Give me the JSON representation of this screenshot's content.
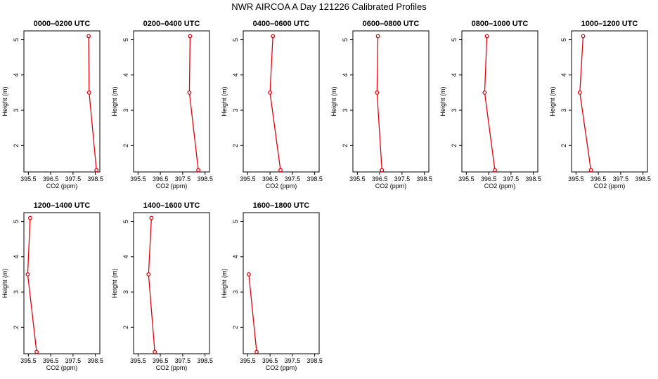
{
  "figure": {
    "title": "NWR AIRCOA A  Day 121226  Calibrated Profiles"
  },
  "style": {
    "line_color": "#e8000b",
    "axis_color": "#000000",
    "background": "#ffffff"
  },
  "chart_data": [
    {
      "type": "line",
      "title": "0000–0200 UTC",
      "xlabel": "CO2 (ppm)",
      "ylabel": "Height (m)",
      "xlim": [
        395.3,
        398.7
      ],
      "ylim": [
        1.25,
        5.25
      ],
      "xticks": [
        395.5,
        396.5,
        397.5,
        398.5
      ],
      "xtick_labels": [
        "395.5",
        "396.5",
        "397.5",
        "398.5"
      ],
      "yticks": [
        2,
        3,
        4,
        5
      ],
      "ytick_labels": [
        "2",
        "3",
        "4",
        "5"
      ],
      "points": [
        {
          "x": 398.2,
          "y": 5.1
        },
        {
          "x": 398.22,
          "y": 3.5
        },
        {
          "x": 398.55,
          "y": 1.3
        }
      ]
    },
    {
      "type": "line",
      "title": "0200–0400 UTC",
      "xlabel": "CO2 (ppm)",
      "ylabel": "Height (m)",
      "xlim": [
        395.3,
        398.7
      ],
      "ylim": [
        1.25,
        5.25
      ],
      "xticks": [
        395.5,
        396.5,
        397.5,
        398.5
      ],
      "xtick_labels": [
        "395.5",
        "396.5",
        "397.5",
        "398.5"
      ],
      "yticks": [
        2,
        3,
        4,
        5
      ],
      "ytick_labels": [
        "2",
        "3",
        "4",
        "5"
      ],
      "points": [
        {
          "x": 397.83,
          "y": 5.1
        },
        {
          "x": 397.8,
          "y": 3.5
        },
        {
          "x": 398.2,
          "y": 1.3
        }
      ]
    },
    {
      "type": "line",
      "title": "0400–0600 UTC",
      "xlabel": "CO2 (ppm)",
      "ylabel": "Height (m)",
      "xlim": [
        395.3,
        398.7
      ],
      "ylim": [
        1.25,
        5.25
      ],
      "xticks": [
        395.5,
        396.5,
        397.5,
        398.5
      ],
      "xtick_labels": [
        "395.5",
        "396.5",
        "397.5",
        "398.5"
      ],
      "yticks": [
        2,
        3,
        4,
        5
      ],
      "ytick_labels": [
        "2",
        "3",
        "4",
        "5"
      ],
      "points": [
        {
          "x": 396.63,
          "y": 5.1
        },
        {
          "x": 396.5,
          "y": 3.5
        },
        {
          "x": 396.97,
          "y": 1.3
        }
      ]
    },
    {
      "type": "line",
      "title": "0600–0800 UTC",
      "xlabel": "CO2 (ppm)",
      "ylabel": "Height (m)",
      "xlim": [
        395.3,
        398.7
      ],
      "ylim": [
        1.25,
        5.25
      ],
      "xticks": [
        395.5,
        396.5,
        397.5,
        398.5
      ],
      "xtick_labels": [
        "395.5",
        "396.5",
        "397.5",
        "398.5"
      ],
      "yticks": [
        2,
        3,
        4,
        5
      ],
      "ytick_labels": [
        "2",
        "3",
        "4",
        "5"
      ],
      "points": [
        {
          "x": 396.42,
          "y": 5.1
        },
        {
          "x": 396.38,
          "y": 3.5
        },
        {
          "x": 396.6,
          "y": 1.3
        }
      ]
    },
    {
      "type": "line",
      "title": "0800–1000 UTC",
      "xlabel": "CO2 (ppm)",
      "ylabel": "Height (m)",
      "xlim": [
        395.3,
        398.7
      ],
      "ylim": [
        1.25,
        5.25
      ],
      "xticks": [
        395.5,
        396.5,
        397.5,
        398.5
      ],
      "xtick_labels": [
        "395.5",
        "396.5",
        "397.5",
        "398.5"
      ],
      "yticks": [
        2,
        3,
        4,
        5
      ],
      "ytick_labels": [
        "2",
        "3",
        "4",
        "5"
      ],
      "points": [
        {
          "x": 396.42,
          "y": 5.1
        },
        {
          "x": 396.32,
          "y": 3.5
        },
        {
          "x": 396.78,
          "y": 1.3
        }
      ]
    },
    {
      "type": "line",
      "title": "1000–1200 UTC",
      "xlabel": "CO2 (ppm)",
      "ylabel": "Height (m)",
      "xlim": [
        395.3,
        398.7
      ],
      "ylim": [
        1.25,
        5.25
      ],
      "xticks": [
        395.5,
        396.5,
        397.5,
        398.5
      ],
      "xtick_labels": [
        "395.5",
        "396.5",
        "397.5",
        "398.5"
      ],
      "yticks": [
        2,
        3,
        4,
        5
      ],
      "ytick_labels": [
        "2",
        "3",
        "4",
        "5"
      ],
      "points": [
        {
          "x": 395.82,
          "y": 5.1
        },
        {
          "x": 395.67,
          "y": 3.5
        },
        {
          "x": 396.17,
          "y": 1.3
        }
      ]
    },
    {
      "type": "line",
      "title": "1200–1400 UTC",
      "xlabel": "CO2 (ppm)",
      "ylabel": "Height (m)",
      "xlim": [
        395.3,
        398.7
      ],
      "ylim": [
        1.25,
        5.25
      ],
      "xticks": [
        395.5,
        396.5,
        397.5,
        398.5
      ],
      "xtick_labels": [
        "395.5",
        "396.5",
        "397.5",
        "398.5"
      ],
      "yticks": [
        2,
        3,
        4,
        5
      ],
      "ytick_labels": [
        "2",
        "3",
        "4",
        "5"
      ],
      "points": [
        {
          "x": 395.58,
          "y": 5.1
        },
        {
          "x": 395.47,
          "y": 3.5
        },
        {
          "x": 395.87,
          "y": 1.3
        }
      ]
    },
    {
      "type": "line",
      "title": "1400–1600 UTC",
      "xlabel": "CO2 (ppm)",
      "ylabel": "Height (m)",
      "xlim": [
        395.3,
        398.7
      ],
      "ylim": [
        1.25,
        5.25
      ],
      "xticks": [
        395.5,
        396.5,
        397.5,
        398.5
      ],
      "xtick_labels": [
        "395.5",
        "396.5",
        "397.5",
        "398.5"
      ],
      "yticks": [
        2,
        3,
        4,
        5
      ],
      "ytick_labels": [
        "2",
        "3",
        "4",
        "5"
      ],
      "points": [
        {
          "x": 396.1,
          "y": 5.1
        },
        {
          "x": 395.97,
          "y": 3.5
        },
        {
          "x": 396.25,
          "y": 1.3
        }
      ]
    },
    {
      "type": "line",
      "title": "1600–1800 UTC",
      "xlabel": "CO2 (ppm)",
      "ylabel": "Height (m)",
      "xlim": [
        395.3,
        398.7
      ],
      "ylim": [
        1.25,
        5.25
      ],
      "xticks": [
        395.5,
        396.5,
        397.5,
        398.5
      ],
      "xtick_labels": [
        "395.5",
        "396.5",
        "397.5",
        "398.5"
      ],
      "yticks": [
        2,
        3,
        4,
        5
      ],
      "ytick_labels": [
        "2",
        "3",
        "4",
        "5"
      ],
      "points": [
        {
          "x": 395.55,
          "y": 3.5
        },
        {
          "x": 395.9,
          "y": 1.3
        }
      ]
    }
  ]
}
